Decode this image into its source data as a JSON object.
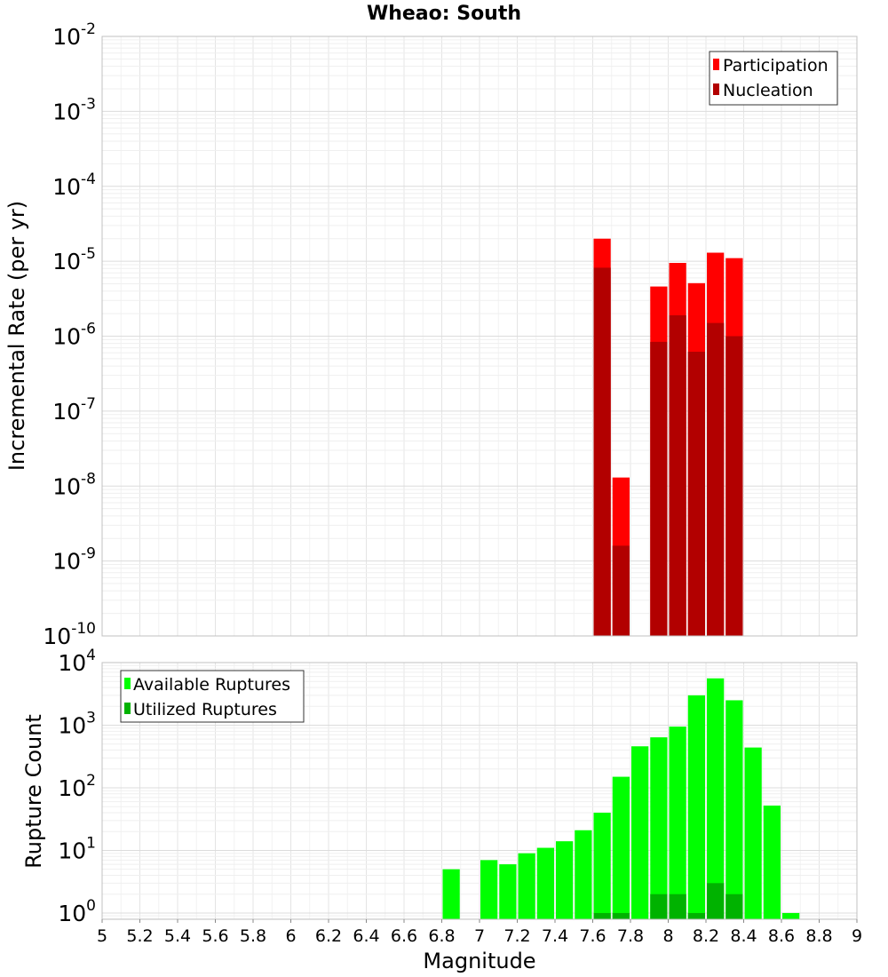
{
  "chart_data": [
    {
      "type": "bar",
      "scale": "log",
      "title": "Wheao: South",
      "xlabel": "",
      "ylabel": "Incremental Rate (per yr)",
      "xlim": [
        5,
        9
      ],
      "ylim_exponents": [
        -10,
        -2
      ],
      "y_tick_labels": [
        {
          "base": "10",
          "exp": "-10"
        },
        {
          "base": "10",
          "exp": "-9"
        },
        {
          "base": "10",
          "exp": "-8"
        },
        {
          "base": "10",
          "exp": "-7"
        },
        {
          "base": "10",
          "exp": "-6"
        },
        {
          "base": "10",
          "exp": "-5"
        },
        {
          "base": "10",
          "exp": "-4"
        },
        {
          "base": "10",
          "exp": "-3"
        },
        {
          "base": "10",
          "exp": "-2"
        }
      ],
      "legend": {
        "position": "top-right",
        "entries": [
          "Participation",
          "Nucleation"
        ]
      },
      "colors": {
        "Participation": "#ff0000",
        "Nucleation": "#b20000"
      },
      "bin_width": 0.1,
      "series": [
        {
          "name": "Participation",
          "x": [
            7.65,
            7.75,
            7.95,
            8.05,
            8.15,
            8.25,
            8.35
          ],
          "values": [
            2e-05,
            1.3e-08,
            4.6e-06,
            9.5e-06,
            5.1e-06,
            1.3e-05,
            1.1e-05
          ]
        },
        {
          "name": "Nucleation",
          "x": [
            7.65,
            7.75,
            7.95,
            8.05,
            8.15,
            8.25,
            8.35
          ],
          "values": [
            8.2e-06,
            1.6e-09,
            8.4e-07,
            1.9e-06,
            6.2e-07,
            1.5e-06,
            1e-06
          ]
        }
      ]
    },
    {
      "type": "bar",
      "scale": "log",
      "title": "",
      "xlabel": "Magnitude",
      "ylabel": "Rupture Count",
      "xlim": [
        5,
        9
      ],
      "ylim_exponents": [
        -0.1,
        4
      ],
      "x_ticks": [
        "5",
        "5.2",
        "5.4",
        "5.6",
        "5.8",
        "6",
        "6.2",
        "6.4",
        "6.6",
        "6.8",
        "7",
        "7.2",
        "7.4",
        "7.6",
        "7.8",
        "8",
        "8.2",
        "8.4",
        "8.6",
        "8.8",
        "9"
      ],
      "y_tick_labels": [
        {
          "base": "10",
          "exp": "0"
        },
        {
          "base": "10",
          "exp": "1"
        },
        {
          "base": "10",
          "exp": "2"
        },
        {
          "base": "10",
          "exp": "3"
        },
        {
          "base": "10",
          "exp": "4"
        }
      ],
      "legend": {
        "position": "top-left",
        "entries": [
          "Available Ruptures",
          "Utilized Ruptures"
        ]
      },
      "colors": {
        "Available Ruptures": "#00ff00",
        "Utilized Ruptures": "#00b200"
      },
      "bin_width": 0.1,
      "series": [
        {
          "name": "Available Ruptures",
          "x": [
            6.85,
            7.05,
            7.15,
            7.25,
            7.35,
            7.45,
            7.55,
            7.65,
            7.75,
            7.85,
            7.95,
            8.05,
            8.15,
            8.25,
            8.35,
            8.45,
            8.55,
            8.65
          ],
          "values": [
            5,
            7,
            6,
            9,
            11,
            14,
            21,
            40,
            150,
            460,
            640,
            950,
            3000,
            5600,
            2500,
            440,
            52,
            1
          ]
        },
        {
          "name": "Utilized Ruptures",
          "x": [
            7.65,
            7.75,
            7.95,
            8.05,
            8.15,
            8.25,
            8.35
          ],
          "values": [
            1,
            1,
            2,
            2,
            1,
            3,
            2
          ]
        }
      ]
    }
  ]
}
